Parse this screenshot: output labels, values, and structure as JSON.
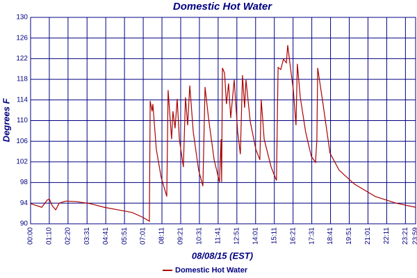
{
  "chart_data": {
    "type": "line",
    "title": "Domestic Hot Water",
    "x_label": "08/08/15 (EST)",
    "y_label": "Degrees F",
    "x": [
      0,
      42,
      62,
      70,
      81,
      94,
      107,
      132,
      171,
      223,
      275,
      327,
      379,
      418,
      444,
      447,
      454,
      457,
      470,
      488,
      509,
      514,
      527,
      532,
      540,
      548,
      556,
      571,
      579,
      587,
      595,
      608,
      628,
      644,
      652,
      665,
      686,
      706,
      712,
      714,
      717,
      725,
      732,
      740,
      748,
      761,
      774,
      784,
      792,
      800,
      805,
      821,
      842,
      857,
      862,
      873,
      899,
      919,
      925,
      935,
      945,
      956,
      961,
      969,
      982,
      992,
      997,
      1008,
      1028,
      1049,
      1065,
      1070,
      1073,
      1093,
      1119,
      1153,
      1210,
      1288,
      1366,
      1439
    ],
    "series": [
      {
        "name": "Domestic Hot Water",
        "color": "#aa0000",
        "values": [
          93.9,
          93.2,
          94.6,
          94.8,
          93.5,
          92.7,
          94.0,
          94.4,
          94.3,
          93.9,
          93.2,
          92.7,
          92.2,
          91.3,
          90.5,
          113.8,
          111.8,
          113.2,
          104.4,
          99.0,
          95.3,
          115.9,
          106.4,
          111.8,
          108.5,
          114.2,
          106.4,
          101.0,
          114.5,
          109.1,
          116.8,
          107.8,
          100.4,
          97.3,
          116.5,
          110.5,
          102.4,
          98.1,
          106.4,
          98.1,
          120.2,
          119.2,
          113.2,
          117.2,
          110.5,
          117.9,
          107.8,
          103.5,
          118.8,
          112.5,
          117.9,
          109.8,
          104.4,
          102.4,
          114.1,
          106.4,
          101.0,
          98.4,
          120.3,
          119.9,
          121.9,
          121.2,
          124.6,
          121.2,
          115.9,
          109.1,
          121.0,
          114.5,
          107.8,
          103.1,
          101.9,
          106.4,
          120.2,
          113.2,
          103.7,
          100.4,
          97.7,
          95.3,
          94.0,
          93.2
        ]
      }
    ],
    "xlim": [
      0,
      1439
    ],
    "xticks": [
      {
        "value": 0,
        "label": "00:00"
      },
      {
        "value": 70,
        "label": "01:10"
      },
      {
        "value": 140,
        "label": "02:20"
      },
      {
        "value": 211,
        "label": "03:31"
      },
      {
        "value": 281,
        "label": "04:41"
      },
      {
        "value": 351,
        "label": "05:51"
      },
      {
        "value": 421,
        "label": "07:01"
      },
      {
        "value": 491,
        "label": "08:11"
      },
      {
        "value": 561,
        "label": "09:21"
      },
      {
        "value": 631,
        "label": "10:31"
      },
      {
        "value": 701,
        "label": "11:41"
      },
      {
        "value": 771,
        "label": "12:51"
      },
      {
        "value": 841,
        "label": "14:01"
      },
      {
        "value": 911,
        "label": "15:11"
      },
      {
        "value": 981,
        "label": "16:21"
      },
      {
        "value": 1051,
        "label": "17:31"
      },
      {
        "value": 1121,
        "label": "18:41"
      },
      {
        "value": 1191,
        "label": "19:51"
      },
      {
        "value": 1261,
        "label": "21:01"
      },
      {
        "value": 1331,
        "label": "22:11"
      },
      {
        "value": 1401,
        "label": "23:21"
      },
      {
        "value": 1439,
        "label": "23:59"
      }
    ],
    "ylim": [
      90,
      130
    ],
    "yticks": [
      90,
      94,
      98,
      102,
      106,
      110,
      114,
      118,
      122,
      126,
      130
    ],
    "grid": true
  }
}
